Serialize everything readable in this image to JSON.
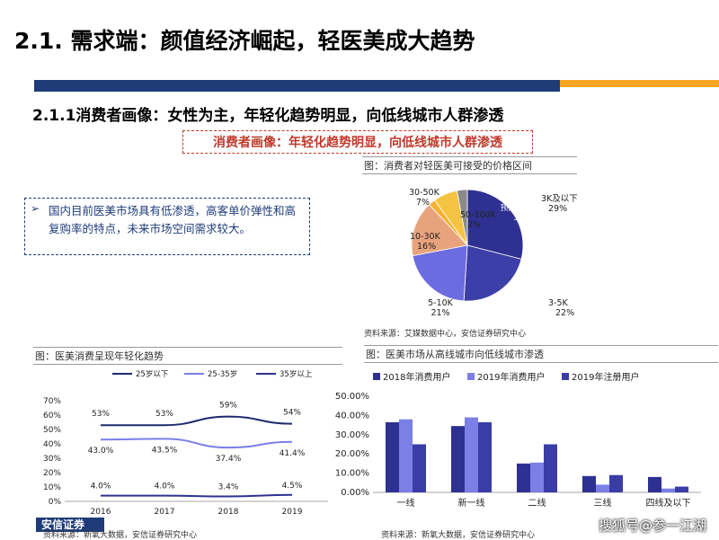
{
  "header": {
    "title": "2.1. 需求端：颜值经济崛起，轻医美成大趋势",
    "subtitle": "2.1.1消费者画像：女性为主，年轻化趋势明显，向低线城市人群渗透",
    "callout": "消费者画像：年轻化趋势明显，向低线城市人群渗透"
  },
  "insight": {
    "arrow": "➢",
    "text": "国内目前医美市场具有低渗透，高客单价弹性和高复购率的特点，未来市场空间需求较大。"
  },
  "pie": {
    "caption": "图：消费者对轻医美可接受的价格区间",
    "source": "资料来源：艾媒数据中心，安信证券研究中心",
    "colors": {
      "primary": "#2f3192"
    }
  },
  "line": {
    "caption": "图：医美消费呈现年轻化趋势",
    "source": "资料来源：新氧大数据，安信证券研究中心"
  },
  "bar": {
    "caption": "图：医美市场从高线城市向低线城市渗透",
    "source": "资料来源：新氧大数据，安信证券研究中心"
  },
  "footer": {
    "logo_text": "安信证券",
    "watermark": "搜狐号@参一江湖"
  },
  "chart_data": [
    {
      "type": "pie",
      "slices": [
        {
          "label": "3K及以下",
          "value": 29,
          "display": "29%",
          "color": "#2e3192"
        },
        {
          "label": "3-5K",
          "value": 22,
          "display": "22%",
          "color": "#3d3fa8"
        },
        {
          "label": "5-10K",
          "value": 21,
          "display": "21%",
          "color": "#6c6ce0"
        },
        {
          "label": "10-30K",
          "value": 16,
          "display": "16%",
          "color": "#e9a37c"
        },
        {
          "label": "50-100K",
          "value": 2,
          "display": "2%",
          "color": "#f2b134"
        },
        {
          "label": "30-50K",
          "value": 7,
          "display": "7%",
          "color": "#f5c342"
        },
        {
          "label": "预算无上限",
          "value": 3,
          "display": "3%",
          "color": "#8a8a8a"
        }
      ]
    },
    {
      "type": "line",
      "x": [
        "2016",
        "2017",
        "2018",
        "2019"
      ],
      "ylim": [
        0,
        70
      ],
      "yticks": [
        "0%",
        "10%",
        "20%",
        "30%",
        "40%",
        "50%",
        "60%",
        "70%"
      ],
      "series": [
        {
          "name": "25岁以下",
          "values": [
            53,
            53,
            59,
            54
          ],
          "labels": [
            "53%",
            "53%",
            "59%",
            "54%"
          ],
          "color": "#1f2a6e"
        },
        {
          "name": "25-35岁",
          "values": [
            43.0,
            43.5,
            37.4,
            41.4
          ],
          "labels": [
            "43.0%",
            "43.5%",
            "37.4%",
            "41.4%"
          ],
          "color": "#7b7fe6"
        },
        {
          "name": "35岁以上",
          "values": [
            4.0,
            4.0,
            3.4,
            4.5
          ],
          "labels": [
            "4.0%",
            "4.0%",
            "3.4%",
            "4.5%"
          ],
          "color": "#2e3192"
        }
      ]
    },
    {
      "type": "bar",
      "categories": [
        "一线",
        "新一线",
        "二线",
        "三线",
        "四线及以下"
      ],
      "ylim": [
        0,
        50
      ],
      "yticks": [
        "0.00%",
        "10.00%",
        "20.00%",
        "30.00%",
        "40.00%",
        "50.00%"
      ],
      "series": [
        {
          "name": "2018年消费用户",
          "values": [
            36.5,
            34.5,
            15,
            8.5,
            8
          ],
          "color": "#2e3192"
        },
        {
          "name": "2019年消费用户",
          "values": [
            38,
            39,
            15.5,
            4,
            2
          ],
          "color": "#7b7fe6"
        },
        {
          "name": "2019年注册用户",
          "values": [
            25,
            36.5,
            25,
            9,
            3
          ],
          "color": "#3a3da6"
        }
      ]
    }
  ]
}
